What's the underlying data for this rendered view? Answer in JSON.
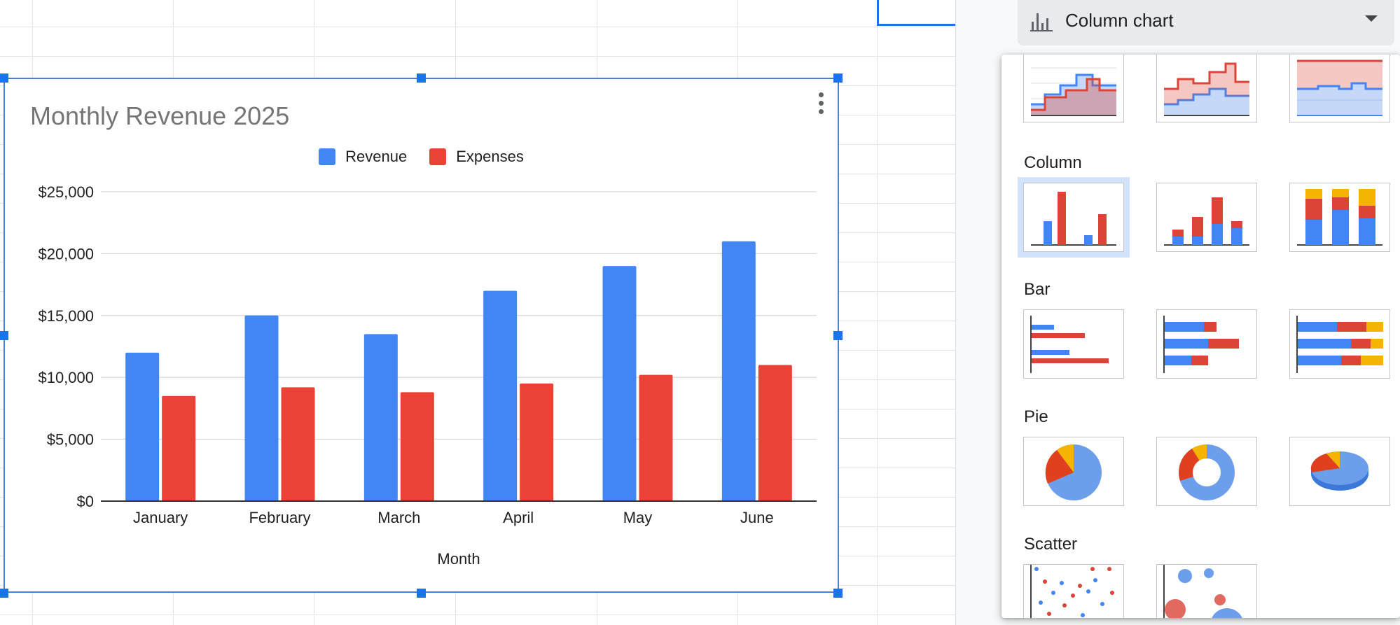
{
  "chart": {
    "menu_icon": "more-vert-icon",
    "chart_data": {
      "type": "bar",
      "title": "Monthly Revenue 2025",
      "xlabel": "Month",
      "ylabel": "",
      "categories": [
        "January",
        "February",
        "March",
        "April",
        "May",
        "June"
      ],
      "series": [
        {
          "name": "Revenue",
          "color": "#4285f4",
          "values": [
            12000,
            15000,
            13500,
            17000,
            19000,
            21000
          ]
        },
        {
          "name": "Expenses",
          "color": "#ea4335",
          "values": [
            8500,
            9200,
            8800,
            9500,
            10200,
            11000
          ]
        }
      ],
      "ylim": [
        0,
        25000
      ],
      "yticks": [
        "$0",
        "$5,000",
        "$10,000",
        "$15,000",
        "$20,000",
        "$25,000"
      ],
      "ytick_values": [
        0,
        5000,
        10000,
        15000,
        20000,
        25000
      ],
      "grid": true,
      "legend_position": "top"
    }
  },
  "panel": {
    "chart_type_label": "Column chart",
    "chart_type_icon": "column-chart-icon",
    "dropdown_icon": "arrow-drop-down-icon",
    "sections": [
      {
        "key": "area",
        "title": "",
        "thumbnails": [
          "stepped-area-chart-icon",
          "stacked-stepped-area-chart-icon",
          "100-stacked-stepped-area-chart-icon"
        ]
      },
      {
        "key": "column",
        "title": "Column",
        "thumbnails": [
          "column-chart-icon",
          "stacked-column-chart-icon",
          "100-stacked-column-chart-icon"
        ]
      },
      {
        "key": "bar",
        "title": "Bar",
        "thumbnails": [
          "bar-chart-icon",
          "stacked-bar-chart-icon",
          "100-stacked-bar-chart-icon"
        ]
      },
      {
        "key": "pie",
        "title": "Pie",
        "thumbnails": [
          "pie-chart-icon",
          "doughnut-chart-icon",
          "3d-pie-chart-icon"
        ]
      },
      {
        "key": "scatter",
        "title": "Scatter",
        "thumbnails": [
          "scatter-chart-icon",
          "bubble-chart-icon"
        ]
      }
    ],
    "selected": "column-chart-icon",
    "colors": {
      "blue": "#4285f4",
      "red": "#db4437",
      "orange": "#f4b400",
      "selected_bg": "#d2e3fc"
    }
  }
}
